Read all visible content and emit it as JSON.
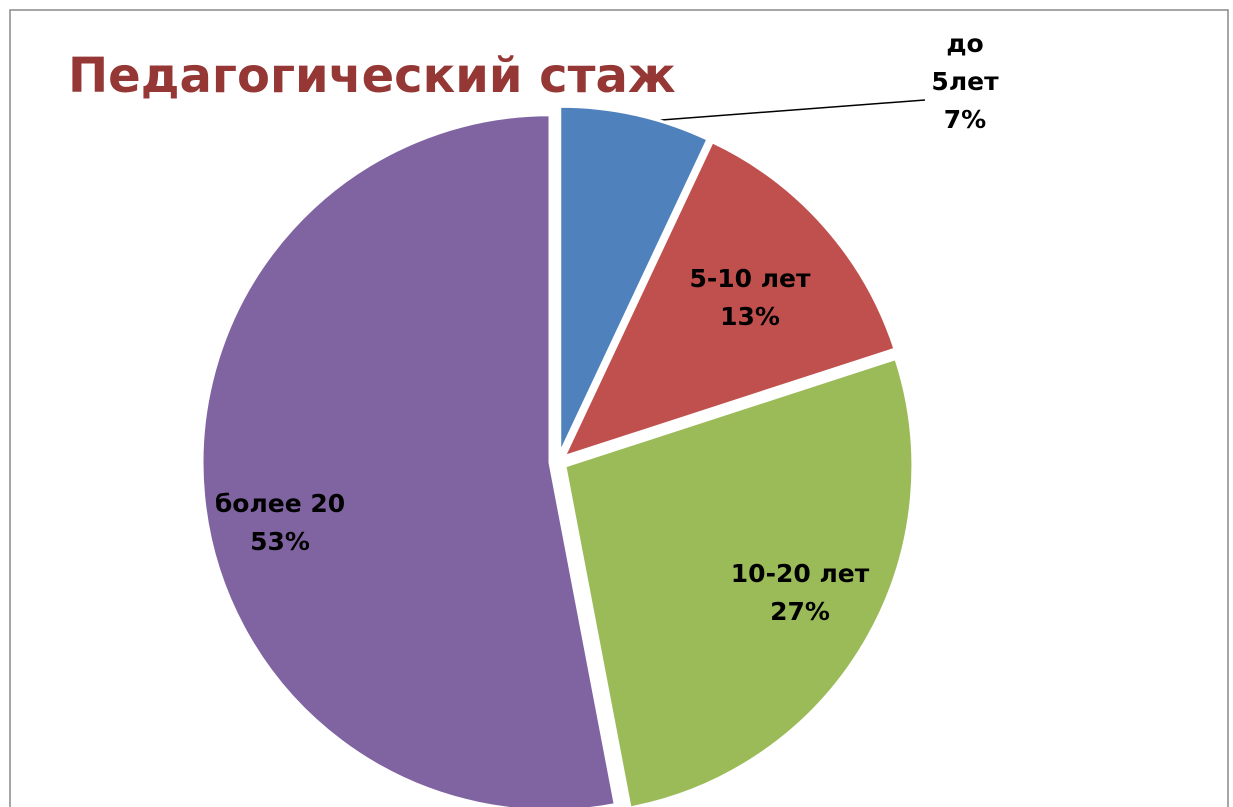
{
  "chart_data": {
    "type": "pie",
    "title": "Педагогический стаж",
    "categories": [
      "до 5лет",
      "5-10 лет",
      "10-20 лет",
      "более 20"
    ],
    "values": [
      7,
      13,
      27,
      53
    ],
    "value_labels": [
      "7%",
      "13%",
      "27%",
      "53%"
    ],
    "colors": [
      "#4f81bd",
      "#c0504d",
      "#9bbb59",
      "#8064a2"
    ]
  }
}
